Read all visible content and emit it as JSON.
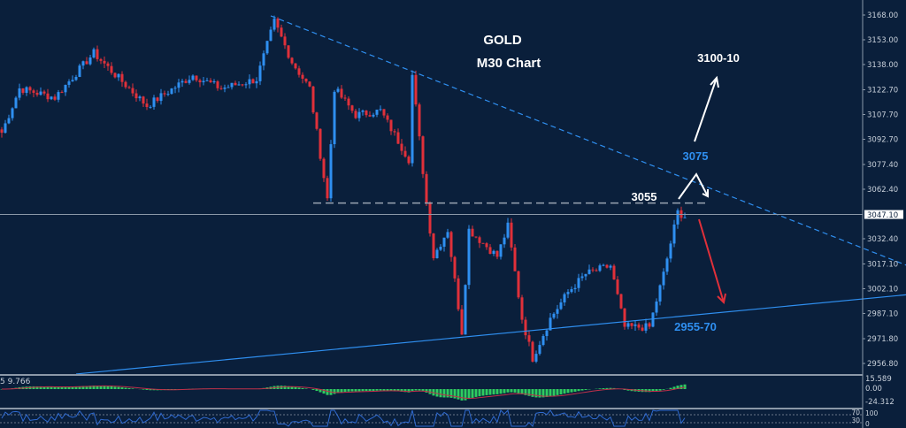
{
  "chart_data": {
    "type": "candlestick",
    "symbol": "GOLD",
    "timeframe": "M30 Chart",
    "colors": {
      "background": "#0a1f3b",
      "bull": "#2f8ff0",
      "bear": "#e0303a",
      "axis": "#8b98a8",
      "trend": "#2f8ff0",
      "macd_hist": "#2ecc60",
      "macd_signal": "#c0304a",
      "rsi": "#2f6ad0"
    },
    "y_axis": {
      "ticks": [
        "3168.00",
        "3153.00",
        "3138.00",
        "3122.70",
        "3107.70",
        "3092.70",
        "3077.40",
        "3062.40",
        "3032.40",
        "3017.10",
        "3002.10",
        "2987.10",
        "2971.80",
        "2956.80"
      ],
      "ylim": [
        2950,
        3175
      ]
    },
    "current_price": "3047.10",
    "bar_count": 194,
    "price_path": [
      [
        0,
        3096.7
      ],
      [
        5,
        3123.5
      ],
      [
        15,
        3118
      ],
      [
        26,
        3145
      ],
      [
        31,
        3134
      ],
      [
        41,
        3113
      ],
      [
        54,
        3131.5
      ],
      [
        62,
        3123.5
      ],
      [
        72,
        3129
      ],
      [
        77,
        3164
      ],
      [
        82,
        3139.6
      ],
      [
        87,
        3123.5
      ],
      [
        92,
        3056.5
      ],
      [
        94,
        3123.5
      ],
      [
        100,
        3107.4
      ],
      [
        107,
        3110
      ],
      [
        115,
        3080.6
      ],
      [
        116,
        3131.5
      ],
      [
        120,
        3054
      ],
      [
        122,
        3021.7
      ],
      [
        126,
        3037.8
      ],
      [
        130,
        2976
      ],
      [
        132,
        3037.8
      ],
      [
        140,
        3021.7
      ],
      [
        143,
        3040
      ],
      [
        147,
        2984
      ],
      [
        150,
        2960
      ],
      [
        155,
        2984
      ],
      [
        160,
        3000
      ],
      [
        165,
        3011
      ],
      [
        172,
        3016
      ],
      [
        176,
        2978.8
      ],
      [
        183,
        2978.8
      ],
      [
        187,
        3011
      ],
      [
        191,
        3048.5
      ],
      [
        193,
        3046
      ]
    ],
    "lines": [
      {
        "name": "descending-trendline",
        "style": "dashed",
        "from": [
          76,
          3167.5
        ],
        "to": [
          256,
          3016
        ]
      },
      {
        "name": "ascending-trendline",
        "style": "solid",
        "from": [
          21,
          2950.4
        ],
        "to": [
          256,
          2998.5
        ]
      },
      {
        "name": "resistance-3055",
        "style": "dashed",
        "from": [
          88,
          3054
        ],
        "to": [
          200,
          3054
        ]
      }
    ],
    "annotations": [
      {
        "text": "3100-10",
        "color": "#ffffff"
      },
      {
        "text": "3075",
        "color": "#2f8ff0"
      },
      {
        "text": "3055",
        "color": "#ffffff"
      },
      {
        "text": "2955-70",
        "color": "#2f8ff0"
      }
    ],
    "indicator1": {
      "label": "5 9.766",
      "ticks": [
        "15.589",
        "0.00",
        "-24.312"
      ]
    },
    "indicator2": {
      "ticks": [
        "100",
        "70",
        "30",
        "0"
      ]
    }
  }
}
